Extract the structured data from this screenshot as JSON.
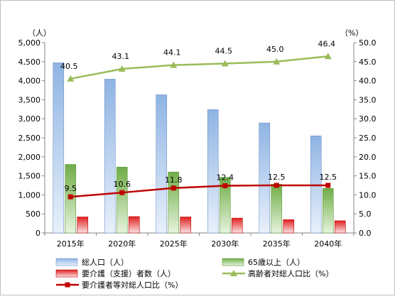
{
  "chart_data": {
    "type": "bar",
    "categories": [
      "2015年",
      "2020年",
      "2025年",
      "2030年",
      "2035年",
      "2040年"
    ],
    "left_unit": "（人）",
    "right_unit": "（%）",
    "left_axis": {
      "min": 0,
      "max": 5000,
      "step": 500,
      "ticks": [
        "0",
        "500",
        "1,000",
        "1,500",
        "2,000",
        "2,500",
        "3,000",
        "3,500",
        "4,000",
        "4,500",
        "5,000"
      ]
    },
    "right_axis": {
      "min": 0,
      "max": 50,
      "step": 5,
      "ticks": [
        "0.0",
        "5.0",
        "10.0",
        "15.0",
        "20.0",
        "25.0",
        "30.0",
        "35.0",
        "40.0",
        "45.0",
        "50.0"
      ]
    },
    "grid": false,
    "legend_position": "bottom",
    "series": [
      {
        "name": "総人口（人）",
        "kind": "bar",
        "axis": "left",
        "color": "#8fb4e3",
        "values": [
          4470,
          4040,
          3630,
          3240,
          2890,
          2550
        ]
      },
      {
        "name": "65歳以上（人）",
        "kind": "bar",
        "axis": "left",
        "color": "#70ad47",
        "values": [
          1800,
          1730,
          1600,
          1460,
          1280,
          1170
        ]
      },
      {
        "name": "要介護（支援）者数（人）",
        "kind": "bar",
        "axis": "left",
        "color": "#e02020",
        "values": [
          420,
          430,
          420,
          390,
          350,
          320
        ]
      },
      {
        "name": "高齢者対総人口比（%）",
        "kind": "line",
        "axis": "right",
        "color": "#9bbb59",
        "marker": "triangle",
        "values": [
          40.5,
          43.1,
          44.1,
          44.5,
          45.0,
          46.4
        ],
        "labels": [
          "40.5",
          "43.1",
          "44.1",
          "44.5",
          "45.0",
          "46.4"
        ]
      },
      {
        "name": "要介護者等対総人口比（%）",
        "kind": "line",
        "axis": "right",
        "color": "#c00000",
        "marker": "square",
        "values": [
          9.5,
          10.6,
          11.8,
          12.4,
          12.5,
          12.5
        ],
        "labels": [
          "9.5",
          "10.6",
          "11.8",
          "12.4",
          "12.5",
          "12.5"
        ]
      }
    ]
  }
}
